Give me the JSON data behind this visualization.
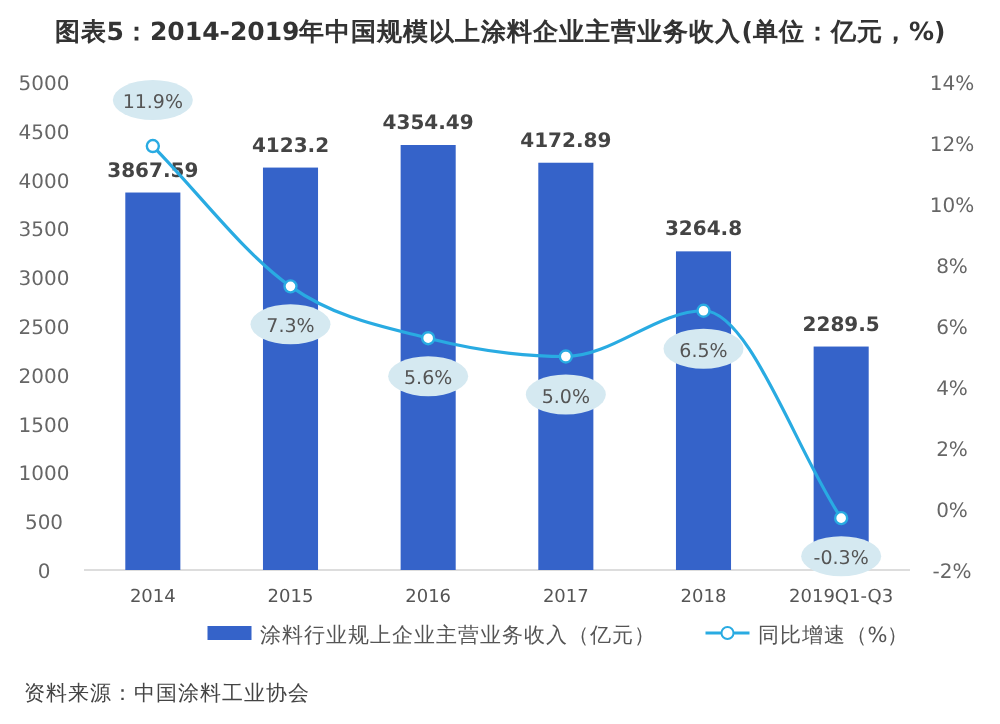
{
  "chart_data": {
    "type": "bar",
    "title": "图表5：2014-2019年中国规模以上涂料企业主营业务收入(单位：亿元，%)",
    "categories": [
      "2014",
      "2015",
      "2016",
      "2017",
      "2018",
      "2019Q1-Q3"
    ],
    "series": [
      {
        "name": "涂料行业规上企业主营业务收入（亿元）",
        "color": "#3563c9",
        "values": [
          3867.59,
          4123.2,
          4354.49,
          4172.89,
          3264.8,
          2289.5
        ],
        "value_labels": [
          "3867.59",
          "4123.2",
          "4354.49",
          "4172.89",
          "3264.8",
          "2289.5"
        ]
      },
      {
        "name": "同比增速（%）",
        "type": "line",
        "axis": "y2",
        "color": "#29abe2",
        "values": [
          11.9,
          7.3,
          5.6,
          5.0,
          6.5,
          -0.3
        ],
        "value_labels": [
          "11.9%",
          "7.3%",
          "5.6%",
          "5.0%",
          "6.5%",
          "-0.3%"
        ]
      }
    ],
    "ylim": [
      0,
      5000
    ],
    "yticks": [
      0,
      500,
      1000,
      1500,
      2000,
      2500,
      3000,
      3500,
      4000,
      4500,
      5000
    ],
    "y2lim": [
      -2,
      14
    ],
    "y2ticks": [
      {
        "value": -2,
        "label": "-2%"
      },
      {
        "value": 0,
        "label": "0%"
      },
      {
        "value": 2,
        "label": "2%"
      },
      {
        "value": 4,
        "label": "4%"
      },
      {
        "value": 6,
        "label": "6%"
      },
      {
        "value": 8,
        "label": "8%"
      },
      {
        "value": 10,
        "label": "10%"
      },
      {
        "value": 12,
        "label": "12%"
      },
      {
        "value": 14,
        "label": "14%"
      }
    ],
    "legend": "bottom",
    "grid": false,
    "marker": "circle",
    "line_style": "solid",
    "annotations": [
      "资料来源：中国涂料工业协会"
    ]
  }
}
